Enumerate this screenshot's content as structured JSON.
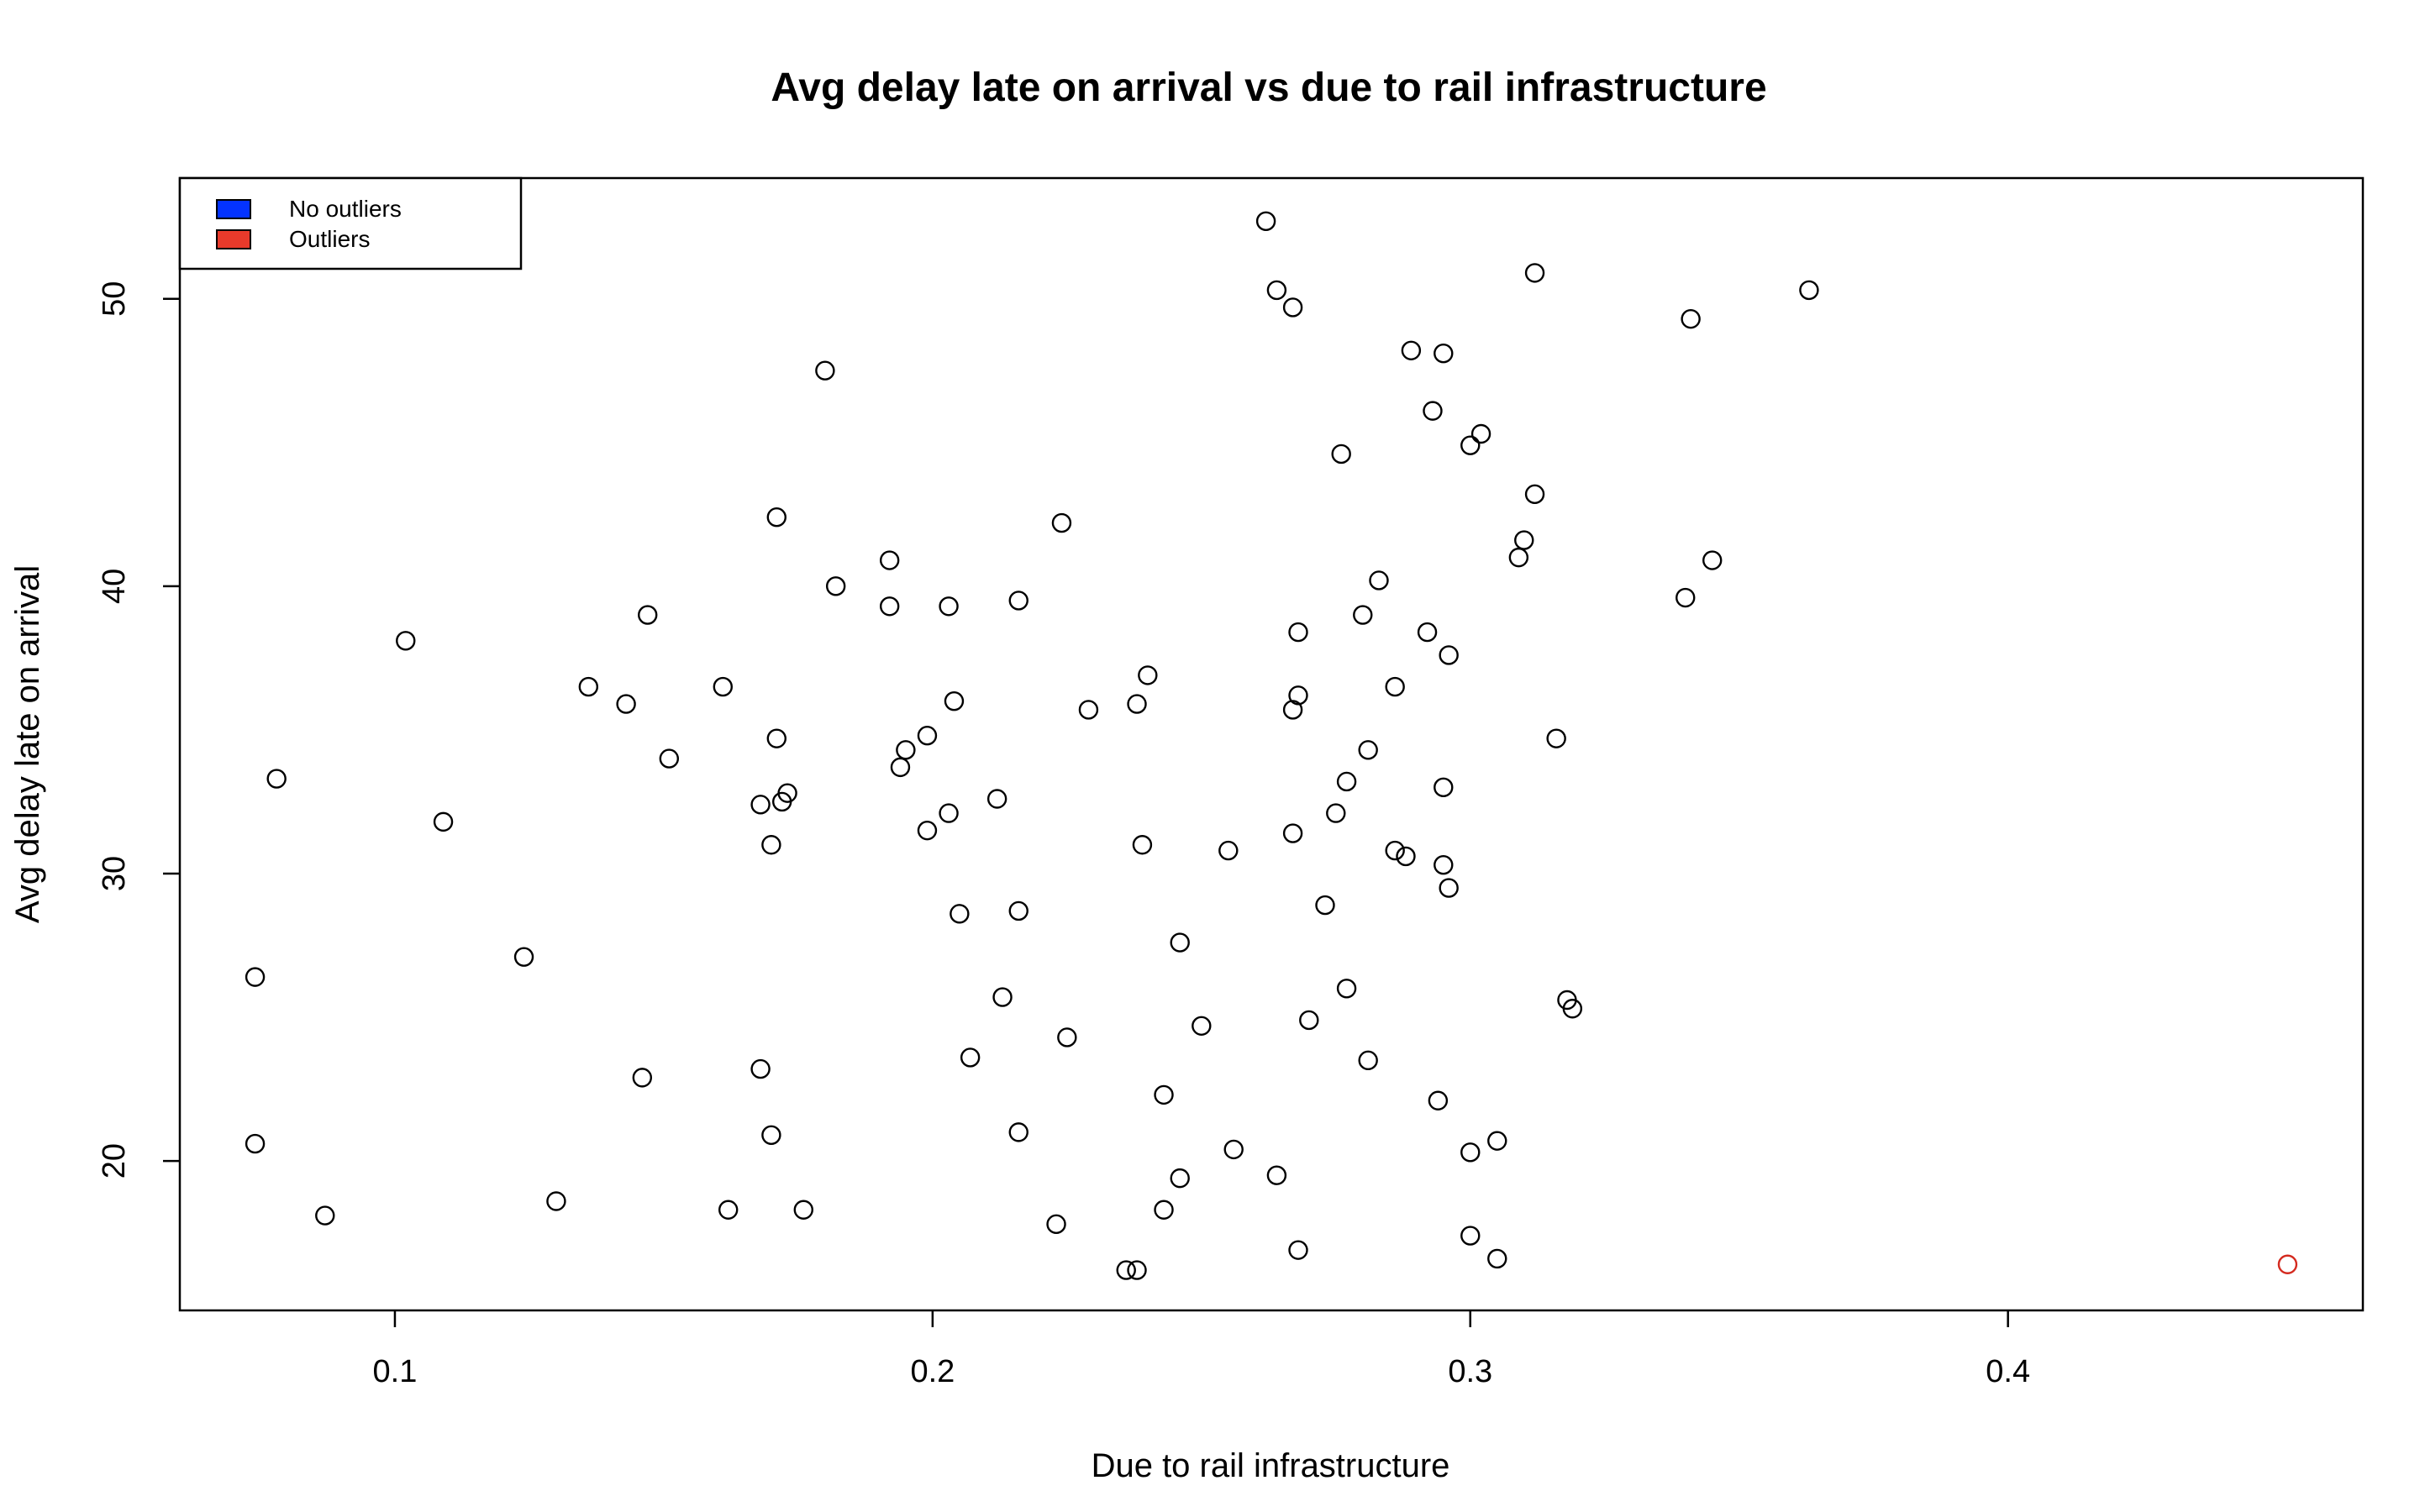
{
  "chart_data": {
    "type": "scatter",
    "title": "Avg delay late on arrival vs due to rail infrastructure",
    "xlabel": "Due to rail infrastructure",
    "ylabel": "Avg delay late on arrival",
    "xlim": [
      0.06,
      0.466
    ],
    "ylim": [
      14.8,
      54.2
    ],
    "xticks": [
      0.1,
      0.2,
      0.3,
      0.4
    ],
    "yticks": [
      20,
      30,
      40,
      50
    ],
    "grid": false,
    "legend": {
      "position": "top-left",
      "items": [
        {
          "label": "No outliers",
          "color": "#0433ff"
        },
        {
          "label": "Outliers",
          "color": "#e83a2b"
        }
      ]
    },
    "series": [
      {
        "name": "No outliers",
        "color": "#000000",
        "points": [
          [
            0.262,
            52.7
          ],
          [
            0.312,
            50.9
          ],
          [
            0.264,
            50.3
          ],
          [
            0.267,
            49.7
          ],
          [
            0.363,
            50.3
          ],
          [
            0.341,
            49.3
          ],
          [
            0.289,
            48.2
          ],
          [
            0.295,
            48.1
          ],
          [
            0.18,
            47.5
          ],
          [
            0.293,
            46.1
          ],
          [
            0.302,
            45.3
          ],
          [
            0.3,
            44.9
          ],
          [
            0.276,
            44.6
          ],
          [
            0.312,
            43.2
          ],
          [
            0.171,
            42.4
          ],
          [
            0.224,
            42.2
          ],
          [
            0.31,
            41.6
          ],
          [
            0.309,
            41.0
          ],
          [
            0.192,
            40.9
          ],
          [
            0.345,
            40.9
          ],
          [
            0.283,
            40.2
          ],
          [
            0.182,
            40.0
          ],
          [
            0.34,
            39.6
          ],
          [
            0.216,
            39.5
          ],
          [
            0.192,
            39.3
          ],
          [
            0.203,
            39.3
          ],
          [
            0.147,
            39.0
          ],
          [
            0.28,
            39.0
          ],
          [
            0.268,
            38.4
          ],
          [
            0.292,
            38.4
          ],
          [
            0.102,
            38.1
          ],
          [
            0.296,
            37.6
          ],
          [
            0.24,
            36.9
          ],
          [
            0.136,
            36.5
          ],
          [
            0.161,
            36.5
          ],
          [
            0.286,
            36.5
          ],
          [
            0.268,
            36.2
          ],
          [
            0.204,
            36.0
          ],
          [
            0.143,
            35.9
          ],
          [
            0.238,
            35.9
          ],
          [
            0.267,
            35.7
          ],
          [
            0.229,
            35.7
          ],
          [
            0.199,
            34.8
          ],
          [
            0.171,
            34.7
          ],
          [
            0.316,
            34.7
          ],
          [
            0.195,
            34.3
          ],
          [
            0.281,
            34.3
          ],
          [
            0.151,
            34.0
          ],
          [
            0.194,
            33.7
          ],
          [
            0.078,
            33.3
          ],
          [
            0.277,
            33.2
          ],
          [
            0.295,
            33.0
          ],
          [
            0.173,
            32.8
          ],
          [
            0.212,
            32.6
          ],
          [
            0.168,
            32.4
          ],
          [
            0.172,
            32.5
          ],
          [
            0.275,
            32.1
          ],
          [
            0.203,
            32.1
          ],
          [
            0.109,
            31.8
          ],
          [
            0.199,
            31.5
          ],
          [
            0.267,
            31.4
          ],
          [
            0.17,
            31.0
          ],
          [
            0.239,
            31.0
          ],
          [
            0.255,
            30.8
          ],
          [
            0.286,
            30.8
          ],
          [
            0.288,
            30.6
          ],
          [
            0.295,
            30.3
          ],
          [
            0.296,
            29.5
          ],
          [
            0.273,
            28.9
          ],
          [
            0.216,
            28.7
          ],
          [
            0.205,
            28.6
          ],
          [
            0.246,
            27.6
          ],
          [
            0.124,
            27.1
          ],
          [
            0.074,
            26.4
          ],
          [
            0.277,
            26.0
          ],
          [
            0.213,
            25.7
          ],
          [
            0.318,
            25.6
          ],
          [
            0.319,
            25.3
          ],
          [
            0.27,
            24.9
          ],
          [
            0.25,
            24.7
          ],
          [
            0.225,
            24.3
          ],
          [
            0.207,
            23.6
          ],
          [
            0.281,
            23.5
          ],
          [
            0.168,
            23.2
          ],
          [
            0.146,
            22.9
          ],
          [
            0.243,
            22.3
          ],
          [
            0.294,
            22.1
          ],
          [
            0.216,
            21.0
          ],
          [
            0.17,
            20.9
          ],
          [
            0.305,
            20.7
          ],
          [
            0.074,
            20.6
          ],
          [
            0.256,
            20.4
          ],
          [
            0.3,
            20.3
          ],
          [
            0.246,
            19.4
          ],
          [
            0.264,
            19.5
          ],
          [
            0.13,
            18.6
          ],
          [
            0.162,
            18.3
          ],
          [
            0.176,
            18.3
          ],
          [
            0.243,
            18.3
          ],
          [
            0.087,
            18.1
          ],
          [
            0.223,
            17.8
          ],
          [
            0.3,
            17.4
          ],
          [
            0.268,
            16.9
          ],
          [
            0.305,
            16.6
          ],
          [
            0.236,
            16.2
          ],
          [
            0.238,
            16.2
          ]
        ]
      },
      {
        "name": "Outliers",
        "color": "#d42a1f",
        "points": [
          [
            0.452,
            16.4
          ]
        ]
      }
    ]
  }
}
